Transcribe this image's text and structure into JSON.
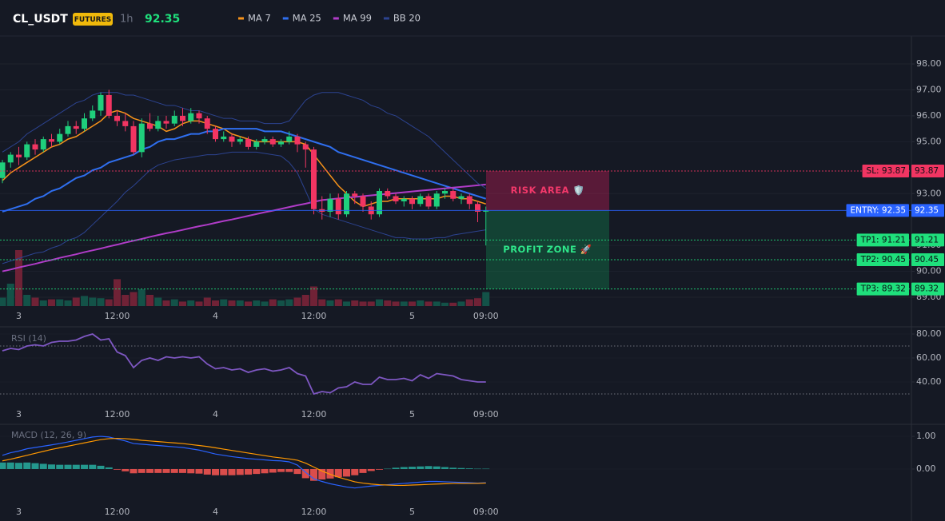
{
  "chart_data": [
    {
      "type": "candlestick",
      "title": "CL_USDT",
      "badge": "FUTURES",
      "interval": "1h",
      "last_price": 92.35,
      "categories": [
        null,
        null,
        "3",
        null,
        null,
        null,
        null,
        null,
        null,
        null,
        null,
        null,
        null,
        null,
        "12:00",
        null,
        null,
        null,
        null,
        null,
        null,
        null,
        null,
        null,
        null,
        null,
        "4",
        null,
        null,
        null,
        null,
        null,
        null,
        null,
        null,
        null,
        null,
        null,
        "12:00",
        null,
        null,
        null,
        null,
        null,
        null,
        null,
        null,
        null,
        null,
        null,
        "5",
        null,
        null,
        null,
        null,
        null,
        null,
        null,
        null,
        "09:00"
      ],
      "open": [
        93.6,
        94.2,
        94.5,
        94.4,
        94.9,
        94.7,
        95.1,
        95.0,
        95.3,
        95.6,
        95.5,
        95.9,
        96.2,
        96.8,
        96.0,
        95.8,
        95.6,
        94.6,
        95.7,
        95.5,
        95.8,
        95.7,
        96.0,
        95.8,
        96.1,
        95.9,
        95.5,
        95.1,
        95.2,
        95.0,
        95.1,
        94.8,
        95.0,
        95.1,
        94.9,
        95.0,
        95.2,
        94.9,
        94.7,
        92.4,
        92.3,
        92.8,
        92.2,
        93.0,
        92.9,
        92.5,
        92.2,
        93.1,
        92.9,
        92.7,
        92.8,
        92.6,
        92.9,
        92.5,
        93.0,
        93.1,
        92.8,
        92.9,
        92.6,
        92.3
      ],
      "high": [
        94.3,
        94.6,
        94.8,
        95.0,
        95.1,
        95.2,
        95.3,
        95.5,
        95.8,
        95.8,
        96.1,
        96.4,
        96.9,
        97.0,
        96.2,
        96.1,
        95.8,
        95.9,
        96.1,
        96.0,
        96.0,
        96.2,
        96.3,
        96.3,
        96.2,
        96.0,
        95.6,
        95.4,
        95.3,
        95.2,
        95.2,
        95.1,
        95.2,
        95.2,
        95.1,
        95.4,
        95.3,
        95.0,
        94.8,
        92.9,
        93.0,
        93.0,
        93.1,
        93.1,
        93.0,
        92.7,
        93.2,
        93.2,
        93.0,
        92.9,
        92.9,
        93.0,
        93.0,
        93.1,
        93.2,
        93.2,
        93.0,
        93.0,
        92.7,
        92.5
      ],
      "low": [
        93.4,
        94.0,
        94.1,
        94.3,
        94.5,
        94.6,
        94.8,
        94.9,
        95.2,
        95.3,
        95.4,
        95.8,
        96.0,
        95.9,
        95.6,
        95.4,
        94.5,
        94.4,
        95.4,
        95.4,
        95.5,
        95.6,
        95.6,
        95.7,
        95.7,
        95.3,
        95.0,
        95.0,
        94.8,
        94.9,
        94.7,
        94.7,
        94.9,
        94.8,
        94.8,
        94.9,
        94.6,
        94.0,
        92.2,
        92.0,
        92.1,
        92.0,
        92.1,
        92.6,
        92.3,
        92.0,
        92.1,
        92.8,
        92.6,
        92.5,
        92.4,
        92.5,
        92.4,
        92.4,
        92.8,
        92.7,
        92.6,
        92.4,
        91.9,
        91.0
      ],
      "close": [
        94.2,
        94.5,
        94.4,
        94.9,
        94.7,
        95.1,
        95.0,
        95.3,
        95.6,
        95.5,
        95.9,
        96.2,
        96.8,
        96.0,
        95.8,
        95.6,
        94.6,
        95.7,
        95.5,
        95.8,
        95.7,
        96.0,
        95.8,
        96.1,
        95.9,
        95.5,
        95.1,
        95.2,
        95.0,
        95.1,
        94.8,
        95.0,
        95.1,
        94.9,
        95.0,
        95.2,
        94.9,
        94.7,
        92.4,
        92.3,
        92.8,
        92.2,
        93.0,
        92.9,
        92.5,
        92.2,
        93.1,
        92.9,
        92.7,
        92.8,
        92.6,
        92.9,
        92.5,
        93.0,
        93.1,
        92.8,
        92.9,
        92.6,
        92.3,
        92.35
      ],
      "up_color": "#1fcf7c",
      "down_color": "#f23562",
      "volume": [
        15,
        40,
        100,
        20,
        15,
        10,
        12,
        12,
        10,
        15,
        18,
        15,
        14,
        12,
        48,
        20,
        25,
        30,
        20,
        15,
        10,
        12,
        8,
        10,
        8,
        15,
        10,
        12,
        10,
        10,
        8,
        10,
        8,
        12,
        10,
        12,
        15,
        20,
        35,
        12,
        10,
        12,
        8,
        10,
        8,
        8,
        12,
        10,
        8,
        8,
        8,
        10,
        8,
        8,
        6,
        6,
        8,
        12,
        14,
        25
      ],
      "volume_lim": [
        0,
        100
      ],
      "series": [
        {
          "name": "MA 7",
          "color": "#f7931a",
          "values": [
            93.5,
            93.8,
            94.0,
            94.2,
            94.4,
            94.6,
            94.8,
            94.9,
            95.1,
            95.2,
            95.4,
            95.6,
            95.8,
            96.1,
            96.2,
            96.1,
            95.9,
            95.8,
            95.7,
            95.6,
            95.4,
            95.5,
            95.7,
            95.8,
            95.8,
            95.7,
            95.6,
            95.5,
            95.3,
            95.2,
            95.1,
            95.0,
            95.0,
            95.0,
            95.0,
            95.0,
            95.0,
            94.9,
            94.5,
            94.1,
            93.7,
            93.3,
            93.0,
            92.7,
            92.5,
            92.6,
            92.7,
            92.7,
            92.8,
            92.8,
            92.8,
            92.8,
            92.8,
            92.8,
            92.9,
            92.9,
            92.8,
            92.8,
            92.7,
            92.6
          ]
        },
        {
          "name": "MA 25",
          "color": "#2f6ff0",
          "values": [
            92.3,
            92.4,
            92.5,
            92.6,
            92.8,
            92.9,
            93.1,
            93.2,
            93.4,
            93.6,
            93.7,
            93.9,
            94.0,
            94.2,
            94.3,
            94.4,
            94.5,
            94.7,
            94.8,
            95.0,
            95.1,
            95.1,
            95.2,
            95.3,
            95.3,
            95.4,
            95.4,
            95.5,
            95.5,
            95.5,
            95.5,
            95.5,
            95.4,
            95.4,
            95.4,
            95.3,
            95.2,
            95.1,
            95.0,
            94.9,
            94.8,
            94.6,
            94.5,
            94.4,
            94.3,
            94.2,
            94.1,
            94.0,
            93.9,
            93.8,
            93.7,
            93.6,
            93.5,
            93.4,
            93.3,
            93.2,
            93.1,
            93.0,
            92.9,
            92.8
          ]
        },
        {
          "name": "MA 99",
          "color": "#b03cc8",
          "values": [
            90.0,
            90.07,
            90.15,
            90.22,
            90.29,
            90.37,
            90.44,
            90.52,
            90.59,
            90.66,
            90.74,
            90.81,
            90.88,
            90.96,
            91.03,
            91.11,
            91.18,
            91.25,
            91.33,
            91.4,
            91.47,
            91.53,
            91.6,
            91.67,
            91.74,
            91.8,
            91.87,
            91.94,
            92.0,
            92.07,
            92.14,
            92.21,
            92.28,
            92.34,
            92.41,
            92.48,
            92.55,
            92.61,
            92.68,
            92.75,
            92.78,
            92.81,
            92.84,
            92.87,
            92.9,
            92.93,
            92.96,
            92.99,
            93.02,
            93.05,
            93.08,
            93.11,
            93.14,
            93.17,
            93.2,
            93.23,
            93.26,
            93.29,
            93.32,
            93.35
          ]
        },
        {
          "name": "BB 20",
          "color": "#2c4390",
          "values": [
            94.6,
            94.8,
            95.0,
            95.3,
            95.5,
            95.7,
            95.9,
            96.1,
            96.3,
            96.5,
            96.6,
            96.8,
            96.9,
            96.9,
            96.9,
            96.8,
            96.8,
            96.7,
            96.6,
            96.5,
            96.4,
            96.4,
            96.3,
            96.2,
            96.2,
            96.1,
            96.0,
            95.9,
            95.9,
            95.8,
            95.8,
            95.8,
            95.7,
            95.7,
            95.7,
            95.8,
            96.2,
            96.6,
            96.8,
            96.9,
            96.9,
            96.9,
            96.8,
            96.7,
            96.6,
            96.4,
            96.3,
            96.1,
            96.0,
            95.8,
            95.6,
            95.4,
            95.2,
            94.9,
            94.6,
            94.3,
            94.0,
            93.7,
            93.4,
            93.2
          ],
          "lower": [
            90.3,
            90.4,
            90.5,
            90.6,
            90.7,
            90.75,
            90.9,
            91.0,
            91.2,
            91.3,
            91.5,
            91.8,
            92.1,
            92.4,
            92.7,
            93.05,
            93.3,
            93.6,
            93.9,
            94.1,
            94.2,
            94.3,
            94.35,
            94.4,
            94.45,
            94.5,
            94.5,
            94.55,
            94.6,
            94.6,
            94.6,
            94.6,
            94.55,
            94.5,
            94.45,
            94.2,
            93.8,
            93.1,
            92.4,
            92.2,
            92.1,
            92.0,
            91.9,
            91.8,
            91.7,
            91.6,
            91.5,
            91.4,
            91.3,
            91.3,
            91.25,
            91.25,
            91.25,
            91.3,
            91.3,
            91.4,
            91.45,
            91.5,
            91.55,
            91.6
          ]
        }
      ],
      "ylim": [
        88.6,
        99.08
      ],
      "yticks": [
        {
          "value": 98,
          "label": "98.00"
        },
        {
          "value": 97,
          "label": "97.00"
        },
        {
          "value": 96,
          "label": "96.00"
        },
        {
          "value": 95,
          "label": "95.00"
        },
        {
          "value": 93,
          "label": "93.00"
        },
        {
          "value": 91,
          "label": "91.00"
        },
        {
          "value": 90,
          "label": "90.00"
        },
        {
          "value": 89,
          "label": "89.00"
        }
      ],
      "grid": true,
      "levels": [
        {
          "label": "SL: 93.87",
          "value": 93.87,
          "color": "#f23562",
          "line_style": "dotted"
        },
        {
          "label": "ENTRY: 92.35",
          "value": 92.35,
          "color": "#2962ff",
          "line_style": "solid"
        },
        {
          "label": "TP1: 91.21",
          "value": 91.21,
          "color": "#1fe07c",
          "line_style": "dotted"
        },
        {
          "label": "TP2: 90.45",
          "value": 90.45,
          "color": "#1fe07c",
          "line_style": "dotted"
        },
        {
          "label": "TP3: 89.32",
          "value": 89.32,
          "color": "#1fe07c",
          "line_style": "dotted"
        }
      ],
      "zones": [
        {
          "label": "RISK AREA 🛡️",
          "from": 92.35,
          "to": 93.87,
          "color": "#e91e63",
          "text_color": "#f2386a"
        },
        {
          "label": "PROFIT ZONE 🚀",
          "from": 89.32,
          "to": 92.35,
          "color": "#0f9d58",
          "text_color": "#2ee68a"
        }
      ]
    },
    {
      "type": "line",
      "title": "RSI (14)",
      "categories": [
        null,
        null,
        "3",
        null,
        null,
        null,
        null,
        null,
        null,
        null,
        null,
        null,
        null,
        null,
        "12:00",
        null,
        null,
        null,
        null,
        null,
        null,
        null,
        null,
        null,
        null,
        null,
        "4",
        null,
        null,
        null,
        null,
        null,
        null,
        null,
        null,
        null,
        null,
        null,
        "12:00",
        null,
        null,
        null,
        null,
        null,
        null,
        null,
        null,
        null,
        null,
        null,
        "5",
        null,
        null,
        null,
        null,
        null,
        null,
        null,
        null,
        "09:00"
      ],
      "values": [
        66,
        68,
        67,
        70,
        71,
        70,
        73,
        74,
        74,
        75,
        78,
        80,
        75,
        76,
        65,
        62,
        52,
        58,
        60,
        58,
        61,
        60,
        61,
        60,
        61,
        55,
        51,
        52,
        50,
        51,
        48,
        50,
        51,
        49,
        50,
        52,
        47,
        45,
        30,
        32,
        31,
        35,
        36,
        40,
        38,
        38,
        44,
        42,
        42,
        43,
        41,
        46,
        43,
        47,
        46,
        45,
        42,
        41,
        40,
        40
      ],
      "color": "#7e57c2",
      "ylim": [
        22,
        84
      ],
      "yticks": [
        {
          "value": 80,
          "label": "80.00"
        },
        {
          "value": 60,
          "label": "60.00"
        },
        {
          "value": 40,
          "label": "40.00"
        }
      ],
      "levels": [
        70,
        30
      ]
    },
    {
      "type": "macd",
      "title": "MACD (12, 26, 9)",
      "categories": [
        null,
        null,
        "3",
        null,
        null,
        null,
        null,
        null,
        null,
        null,
        null,
        null,
        null,
        null,
        "12:00",
        null,
        null,
        null,
        null,
        null,
        null,
        null,
        null,
        null,
        null,
        null,
        "4",
        null,
        null,
        null,
        null,
        null,
        null,
        null,
        null,
        null,
        null,
        null,
        "12:00",
        null,
        null,
        null,
        null,
        null,
        null,
        null,
        null,
        null,
        null,
        null,
        "5",
        null,
        null,
        null,
        null,
        null,
        null,
        null,
        null,
        "09:00"
      ],
      "series": [
        {
          "color": "#2962ff",
          "values": [
            0.42,
            0.5,
            0.55,
            0.62,
            0.66,
            0.7,
            0.74,
            0.78,
            0.83,
            0.88,
            0.93,
            0.98,
            1.0,
            0.98,
            0.92,
            0.86,
            0.78,
            0.76,
            0.74,
            0.72,
            0.7,
            0.68,
            0.66,
            0.62,
            0.58,
            0.52,
            0.46,
            0.42,
            0.38,
            0.35,
            0.32,
            0.3,
            0.28,
            0.26,
            0.25,
            0.22,
            0.12,
            -0.1,
            -0.3,
            -0.38,
            -0.45,
            -0.5,
            -0.55,
            -0.58,
            -0.55,
            -0.52,
            -0.5,
            -0.48,
            -0.46,
            -0.44,
            -0.42,
            -0.4,
            -0.38,
            -0.38,
            -0.39,
            -0.4,
            -0.41,
            -0.42,
            -0.43,
            -0.42
          ]
        },
        {
          "color": "#ff9800",
          "values": [
            0.25,
            0.3,
            0.36,
            0.42,
            0.48,
            0.54,
            0.6,
            0.65,
            0.7,
            0.75,
            0.8,
            0.85,
            0.9,
            0.93,
            0.94,
            0.93,
            0.91,
            0.88,
            0.86,
            0.84,
            0.82,
            0.8,
            0.78,
            0.75,
            0.72,
            0.69,
            0.65,
            0.61,
            0.57,
            0.53,
            0.49,
            0.45,
            0.41,
            0.37,
            0.34,
            0.31,
            0.27,
            0.18,
            0.06,
            -0.06,
            -0.16,
            -0.25,
            -0.32,
            -0.39,
            -0.43,
            -0.46,
            -0.48,
            -0.49,
            -0.5,
            -0.5,
            -0.49,
            -0.48,
            -0.47,
            -0.46,
            -0.45,
            -0.44,
            -0.44,
            -0.44,
            -0.44,
            -0.43
          ]
        }
      ],
      "histogram": [
        0.2,
        0.2,
        0.19,
        0.2,
        0.18,
        0.16,
        0.14,
        0.13,
        0.13,
        0.13,
        0.13,
        0.13,
        0.1,
        0.05,
        -0.02,
        -0.07,
        -0.13,
        -0.12,
        -0.12,
        -0.12,
        -0.12,
        -0.12,
        -0.12,
        -0.13,
        -0.14,
        -0.17,
        -0.19,
        -0.19,
        -0.19,
        -0.18,
        -0.17,
        -0.15,
        -0.13,
        -0.11,
        -0.09,
        -0.09,
        -0.15,
        -0.28,
        -0.36,
        -0.32,
        -0.29,
        -0.25,
        -0.23,
        -0.19,
        -0.12,
        -0.06,
        -0.02,
        0.01,
        0.04,
        0.06,
        0.07,
        0.08,
        0.09,
        0.08,
        0.06,
        0.04,
        0.03,
        0.02,
        0.01,
        0.01
      ],
      "up_color": "#26a69a",
      "down_color": "#ef5350",
      "ylim": [
        -0.93,
        1.32
      ],
      "yticks": [
        {
          "value": 1,
          "label": "1.00"
        },
        {
          "value": 0,
          "label": "0.00"
        }
      ]
    }
  ]
}
